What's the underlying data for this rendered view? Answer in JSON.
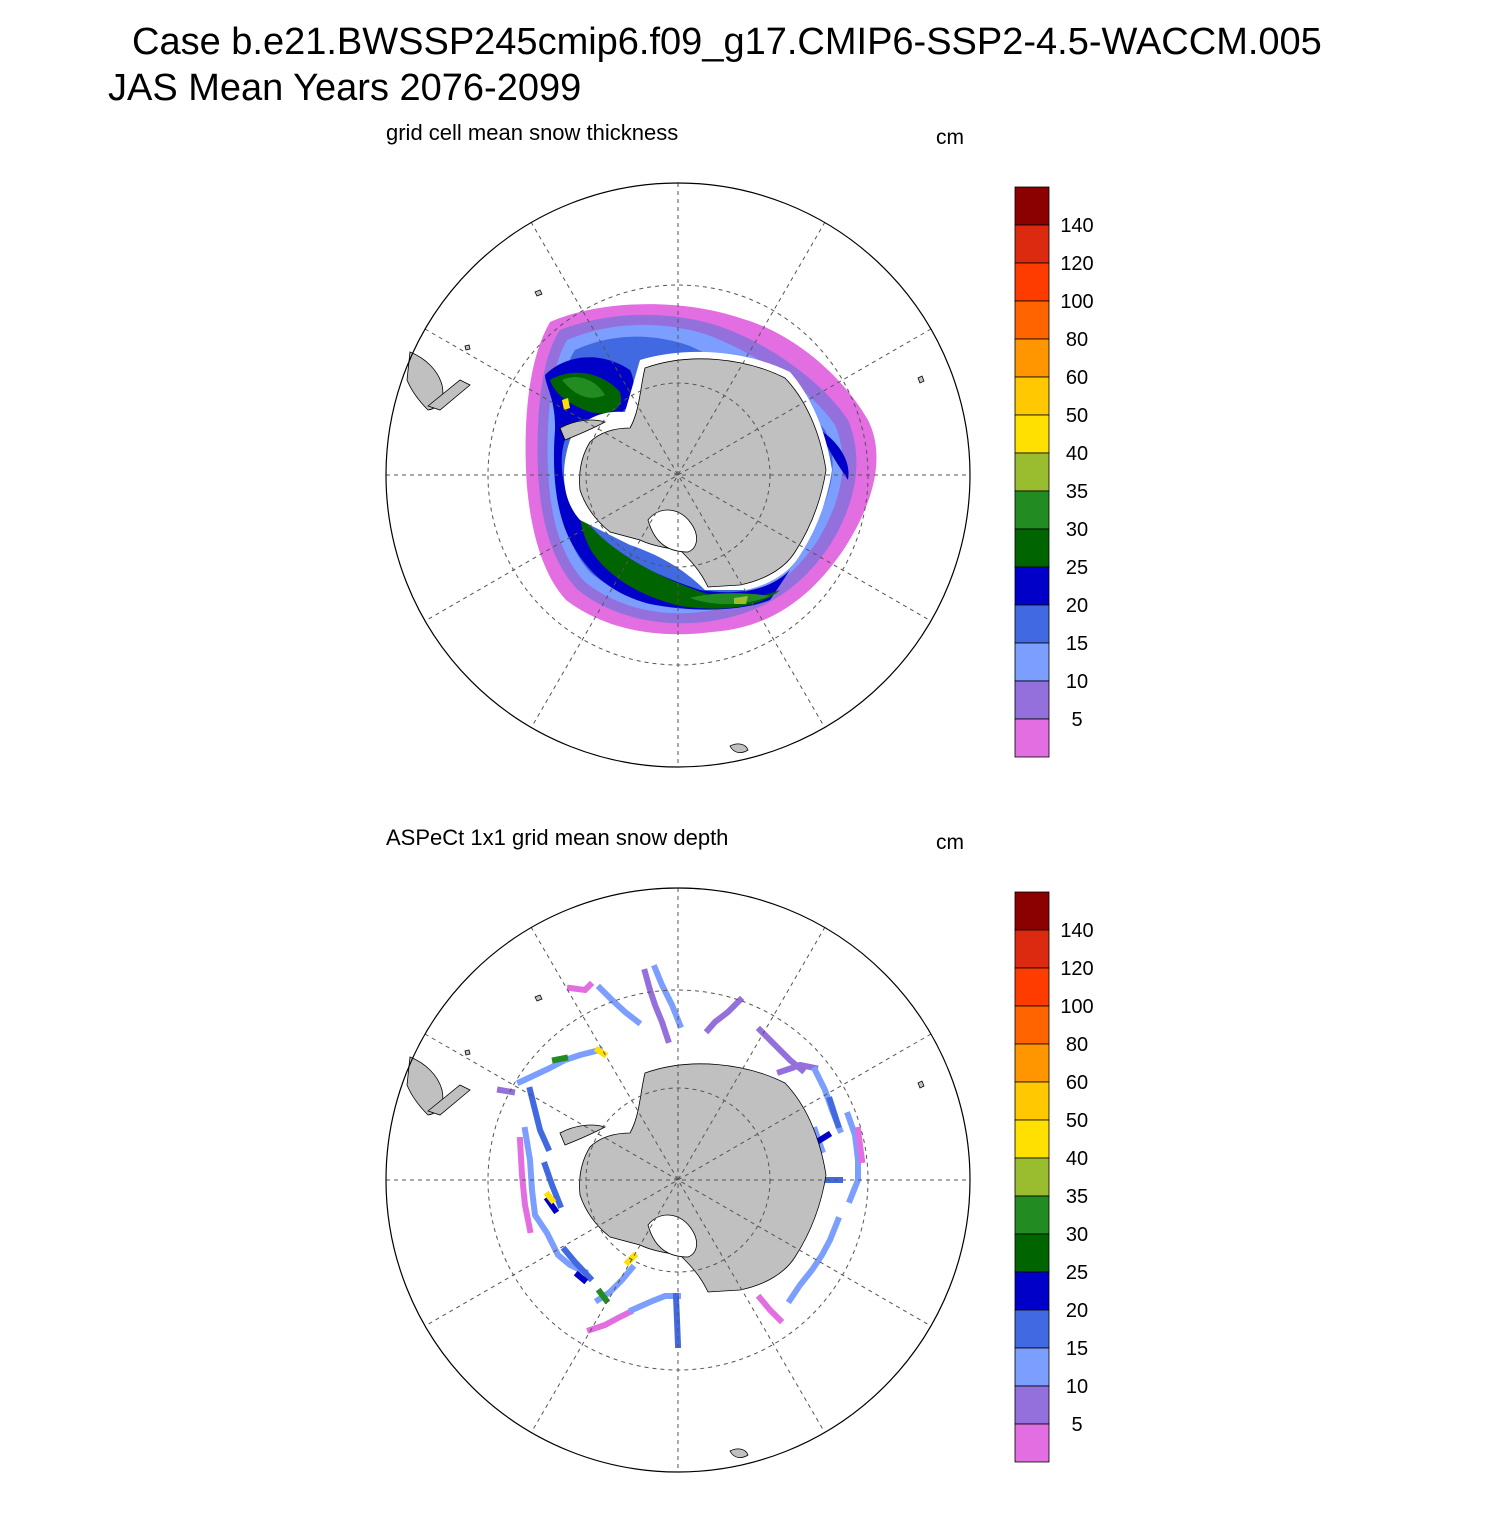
{
  "header": {
    "line1": "Case b.e21.BWSSP245cmip6.f09_g17.CMIP6-SSP2-4.5-WACCM.005",
    "line2": "JAS Mean   Years 2076-2099"
  },
  "panels": [
    {
      "title": "grid cell mean snow thickness",
      "units": "cm"
    },
    {
      "title": "ASPeCt 1x1 grid mean snow depth",
      "units": "cm"
    }
  ],
  "colorbar": {
    "labels": [
      "140",
      "120",
      "100",
      "80",
      "60",
      "50",
      "40",
      "35",
      "30",
      "25",
      "20",
      "15",
      "10",
      "5"
    ],
    "colors": [
      "#8b0000",
      "#dc2a10",
      "#ff3c00",
      "#ff6400",
      "#ff9600",
      "#ffc800",
      "#ffe000",
      "#9abd30",
      "#228b22",
      "#006400",
      "#0000c8",
      "#4169e1",
      "#7b9eff",
      "#9370db",
      "#e26ee2"
    ]
  },
  "colors": {
    "land": "#c0c0c0",
    "grid": "#555555"
  }
}
